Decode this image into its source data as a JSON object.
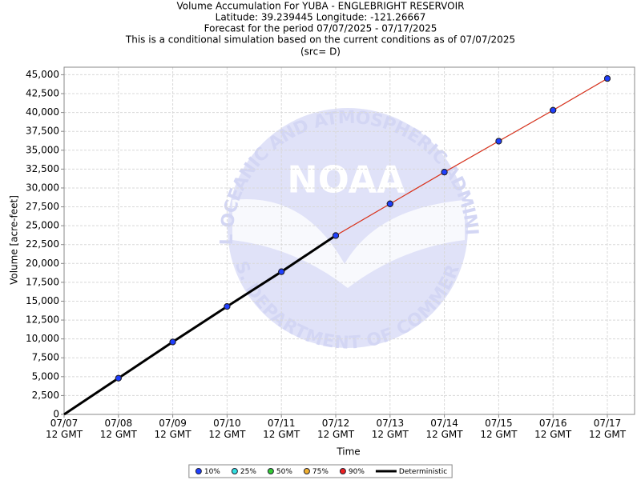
{
  "chart_data": {
    "type": "line",
    "title": "Volume Accumulation For YUBA - ENGLEBRIGHT RESERVOIR",
    "subtitle": [
      "Latitude: 39.239445 Longitude: -121.26667",
      "Forecast for the period 07/07/2025 - 07/17/2025",
      "This is a conditional simulation based on the current conditions as of 07/07/2025",
      "(src= D)"
    ],
    "watermark": [
      "NATIONAL OCEANIC AND ATMOSPHERIC ADMINISTRATION",
      "NOAA",
      "U.S. DEPARTMENT OF COMMERCE"
    ],
    "xlabel": "Time",
    "ylabel": "Volume [acre-feet]",
    "categories": [
      "07/07\n12 GMT",
      "07/08\n12 GMT",
      "07/09\n12 GMT",
      "07/10\n12 GMT",
      "07/11\n12 GMT",
      "07/12\n12 GMT",
      "07/13\n12 GMT",
      "07/14\n12 GMT",
      "07/15\n12 GMT",
      "07/16\n12 GMT",
      "07/17\n12 GMT"
    ],
    "ylim": [
      0,
      46000
    ],
    "yticks": [
      0,
      {
        "value": 2500,
        "label": "2,500"
      },
      {
        "value": 5000,
        "label": "5,000"
      },
      {
        "value": 7500,
        "label": "7,500"
      },
      {
        "value": 10000,
        "label": "10,000"
      },
      {
        "value": 12500,
        "label": "12,500"
      },
      {
        "value": 15000,
        "label": "15,000"
      },
      {
        "value": 17500,
        "label": "17,500"
      },
      {
        "value": 20000,
        "label": "20,000"
      },
      {
        "value": 22500,
        "label": "22,500"
      },
      {
        "value": 25000,
        "label": "25,000"
      },
      {
        "value": 27500,
        "label": "27,500"
      },
      {
        "value": 30000,
        "label": "30,000"
      },
      {
        "value": 32500,
        "label": "32,500"
      },
      {
        "value": 35000,
        "label": "35,000"
      },
      {
        "value": 37500,
        "label": "37,500"
      },
      {
        "value": 40000,
        "label": "40,000"
      },
      {
        "value": 42500,
        "label": "42,500"
      },
      {
        "value": 45000,
        "label": "45,000"
      }
    ],
    "grid": true,
    "legend": "bottom",
    "series": [
      {
        "name": "10%",
        "color": "#1f3fff",
        "values": [
          null,
          4800,
          9600,
          14300,
          18900,
          23700,
          27900,
          32100,
          36200,
          40300,
          44500
        ]
      },
      {
        "name": "25%",
        "color": "#33e0e0",
        "values": [
          null,
          4800,
          9600,
          14300,
          18900,
          23700,
          27900,
          32100,
          36200,
          40300,
          44500
        ]
      },
      {
        "name": "50%",
        "color": "#33cc33",
        "values": [
          null,
          4800,
          9600,
          14300,
          18900,
          23700,
          27900,
          32100,
          36200,
          40300,
          44500
        ]
      },
      {
        "name": "75%",
        "color": "#f0b030",
        "values": [
          null,
          4800,
          9600,
          14300,
          18900,
          23700,
          27900,
          32100,
          36200,
          40300,
          44500
        ]
      },
      {
        "name": "90%",
        "color": "#ee2020",
        "values": [
          null,
          4800,
          9600,
          14300,
          18900,
          23700,
          27900,
          32100,
          36200,
          40300,
          44500
        ]
      },
      {
        "name": "Deterministic",
        "color": "#000000",
        "values": [
          0,
          4800,
          9600,
          14300,
          18900,
          23700,
          null,
          null,
          null,
          null,
          null
        ]
      }
    ]
  }
}
